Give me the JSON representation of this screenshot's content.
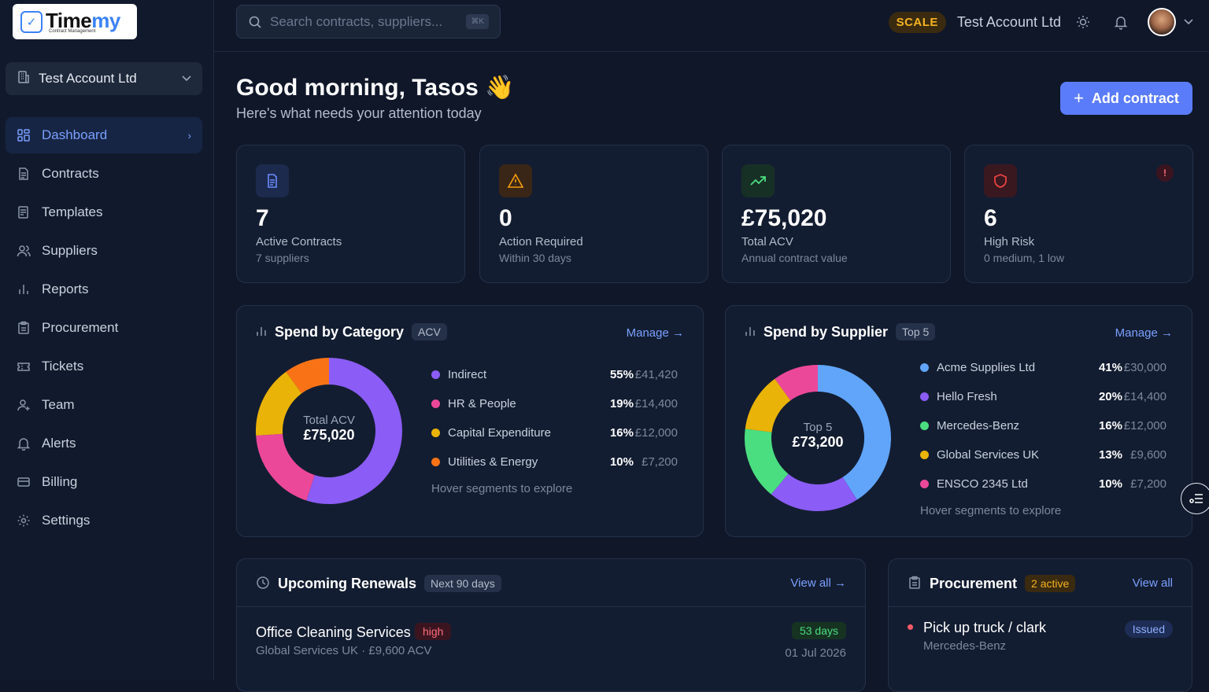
{
  "brand": {
    "name_a": "Time",
    "name_b": "my",
    "tagline": "Contract Management"
  },
  "account_selector": {
    "label": "Test Account Ltd"
  },
  "nav": [
    {
      "label": "Dashboard",
      "icon": "dashboard-icon",
      "active": true
    },
    {
      "label": "Contracts",
      "icon": "contracts-icon"
    },
    {
      "label": "Templates",
      "icon": "templates-icon"
    },
    {
      "label": "Suppliers",
      "icon": "suppliers-icon"
    },
    {
      "label": "Reports",
      "icon": "reports-icon"
    },
    {
      "label": "Procurement",
      "icon": "procurement-icon"
    },
    {
      "label": "Tickets",
      "icon": "tickets-icon"
    },
    {
      "label": "Team",
      "icon": "team-icon"
    },
    {
      "label": "Alerts",
      "icon": "alerts-icon"
    },
    {
      "label": "Billing",
      "icon": "billing-icon"
    },
    {
      "label": "Settings",
      "icon": "settings-icon"
    }
  ],
  "topbar": {
    "search_placeholder": "Search contracts, suppliers...",
    "search_kbd": "⌘K",
    "plan_badge": "SCALE",
    "account_name": "Test Account Ltd"
  },
  "greeting": {
    "title": "Good morning, Tasos",
    "emoji": "👋",
    "subtitle": "Here's what needs your attention today"
  },
  "add_contract": {
    "label": "Add contract"
  },
  "stats": [
    {
      "value": "7",
      "label": "Active Contracts",
      "sub": "7 suppliers",
      "icon": "document-icon",
      "color": "#6b8cff"
    },
    {
      "value": "0",
      "label": "Action Required",
      "sub": "Within 30 days",
      "icon": "warning-icon",
      "color": "#f59e0b"
    },
    {
      "value": "£75,020",
      "label": "Total ACV",
      "sub": "Annual contract value",
      "icon": "trending-up-icon",
      "color": "#4ade80"
    },
    {
      "value": "6",
      "label": "High Risk",
      "sub": "0 medium, 1 low",
      "icon": "shield-icon",
      "color": "#ef4444",
      "alert": "!"
    }
  ],
  "spend_category": {
    "title": "Spend by Category",
    "tag": "ACV",
    "manage": "Manage",
    "center_label": "Total ACV",
    "center_value": "£75,020",
    "hint": "Hover segments to explore",
    "items": [
      {
        "name": "Indirect",
        "pct": "55%",
        "amount": "£41,420",
        "value": 55,
        "color": "#8b5cf6"
      },
      {
        "name": "HR & People",
        "pct": "19%",
        "amount": "£14,400",
        "value": 19,
        "color": "#ec4899"
      },
      {
        "name": "Capital Expenditure",
        "pct": "16%",
        "amount": "£12,000",
        "value": 16,
        "color": "#eab308"
      },
      {
        "name": "Utilities & Energy",
        "pct": "10%",
        "amount": "£7,200",
        "value": 10,
        "color": "#f97316"
      }
    ]
  },
  "spend_supplier": {
    "title": "Spend by Supplier",
    "tag": "Top 5",
    "manage": "Manage",
    "center_label": "Top 5",
    "center_value": "£73,200",
    "hint": "Hover segments to explore",
    "items": [
      {
        "name": "Acme Supplies Ltd",
        "pct": "41%",
        "amount": "£30,000",
        "value": 41,
        "color": "#60a5fa"
      },
      {
        "name": "Hello Fresh",
        "pct": "20%",
        "amount": "£14,400",
        "value": 20,
        "color": "#8b5cf6"
      },
      {
        "name": "Mercedes-Benz",
        "pct": "16%",
        "amount": "£12,000",
        "value": 16,
        "color": "#4ade80"
      },
      {
        "name": "Global Services UK",
        "pct": "13%",
        "amount": "£9,600",
        "value": 13,
        "color": "#eab308"
      },
      {
        "name": "ENSCO 2345 Ltd",
        "pct": "10%",
        "amount": "£7,200",
        "value": 10,
        "color": "#ec4899"
      }
    ]
  },
  "renewals": {
    "title": "Upcoming Renewals",
    "tag": "Next 90 days",
    "view_all": "View all",
    "items": [
      {
        "title": "Office Cleaning Services",
        "risk": "high",
        "sub": "Global Services UK · £9,600 ACV",
        "days": "53 days",
        "date": "01 Jul 2026"
      }
    ]
  },
  "procurement": {
    "title": "Procurement",
    "tag": "2 active",
    "view_all": "View all",
    "items": [
      {
        "title": "Pick up truck / clark",
        "sub": "Mercedes-Benz",
        "status": "Issued"
      }
    ]
  }
}
